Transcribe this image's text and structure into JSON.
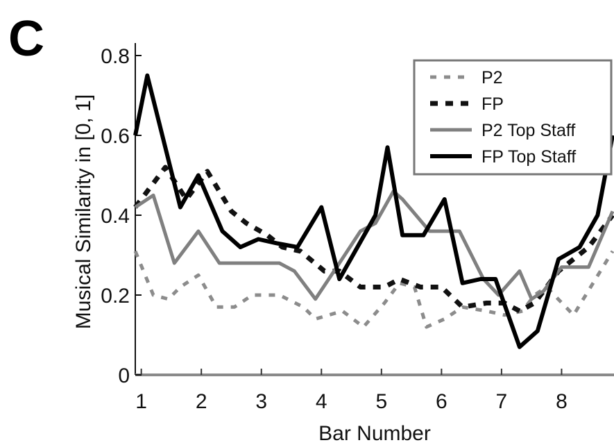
{
  "panel_label": "C",
  "chart_data": {
    "type": "line",
    "title": "",
    "xlabel": "Bar Number",
    "ylabel": "Musical Similarity in [0, 1]",
    "xlim": [
      0.9,
      8.85
    ],
    "ylim": [
      0,
      0.8
    ],
    "x_ticks": [
      1,
      2,
      3,
      4,
      5,
      6,
      7,
      8
    ],
    "x_tick_labels": [
      "1",
      "2",
      "3",
      "4",
      "5",
      "6",
      "7",
      "8"
    ],
    "y_ticks": [
      0,
      0.2,
      0.4,
      0.6,
      0.8
    ],
    "y_tick_labels": [
      "0",
      "0.2",
      "0.4",
      "0.6",
      "0.8"
    ],
    "grid": false,
    "legend_position": "top-right",
    "series": [
      {
        "name": "P2",
        "color": "#8c8c8c",
        "style": "dashed",
        "points": [
          [
            0.9,
            0.31
          ],
          [
            1.2,
            0.2
          ],
          [
            1.45,
            0.19
          ],
          [
            1.65,
            0.22
          ],
          [
            1.95,
            0.25
          ],
          [
            2.25,
            0.17
          ],
          [
            2.55,
            0.17
          ],
          [
            2.85,
            0.2
          ],
          [
            3.3,
            0.2
          ],
          [
            3.7,
            0.17
          ],
          [
            3.9,
            0.14
          ],
          [
            4.35,
            0.16
          ],
          [
            4.7,
            0.12
          ],
          [
            5.05,
            0.18
          ],
          [
            5.3,
            0.23
          ],
          [
            5.55,
            0.22
          ],
          [
            5.75,
            0.12
          ],
          [
            6.05,
            0.14
          ],
          [
            6.35,
            0.17
          ],
          [
            6.75,
            0.16
          ],
          [
            7.05,
            0.15
          ],
          [
            7.35,
            0.16
          ],
          [
            7.55,
            0.2
          ],
          [
            7.75,
            0.22
          ],
          [
            8.2,
            0.15
          ],
          [
            8.85,
            0.31
          ]
        ]
      },
      {
        "name": "FP",
        "color": "#111111",
        "style": "dashed",
        "points": [
          [
            0.9,
            0.42
          ],
          [
            1.4,
            0.52
          ],
          [
            1.75,
            0.44
          ],
          [
            2.1,
            0.51
          ],
          [
            2.5,
            0.41
          ],
          [
            2.75,
            0.38
          ],
          [
            3.1,
            0.35
          ],
          [
            3.35,
            0.32
          ],
          [
            3.65,
            0.31
          ],
          [
            4.05,
            0.26
          ],
          [
            4.3,
            0.26
          ],
          [
            4.65,
            0.22
          ],
          [
            5.05,
            0.22
          ],
          [
            5.3,
            0.24
          ],
          [
            5.65,
            0.22
          ],
          [
            6,
            0.22
          ],
          [
            6.35,
            0.17
          ],
          [
            6.75,
            0.18
          ],
          [
            7.05,
            0.18
          ],
          [
            7.3,
            0.16
          ],
          [
            7.55,
            0.18
          ],
          [
            7.95,
            0.26
          ],
          [
            8.45,
            0.32
          ],
          [
            8.85,
            0.4
          ]
        ]
      },
      {
        "name": "P2 Top Staff",
        "color": "#808080",
        "style": "solid",
        "points": [
          [
            0.9,
            0.42
          ],
          [
            1.2,
            0.45
          ],
          [
            1.55,
            0.28
          ],
          [
            1.95,
            0.36
          ],
          [
            2.3,
            0.28
          ],
          [
            2.75,
            0.28
          ],
          [
            3.3,
            0.28
          ],
          [
            3.55,
            0.26
          ],
          [
            3.9,
            0.19
          ],
          [
            4.3,
            0.28
          ],
          [
            4.65,
            0.36
          ],
          [
            4.9,
            0.38
          ],
          [
            5.2,
            0.46
          ],
          [
            5.35,
            0.44
          ],
          [
            5.8,
            0.36
          ],
          [
            6.3,
            0.36
          ],
          [
            6.7,
            0.24
          ],
          [
            6.95,
            0.2
          ],
          [
            7.3,
            0.26
          ],
          [
            7.5,
            0.19
          ],
          [
            7.7,
            0.21
          ],
          [
            8,
            0.27
          ],
          [
            8.45,
            0.27
          ],
          [
            8.85,
            0.41
          ]
        ]
      },
      {
        "name": "FP Top Staff",
        "color": "#000000",
        "style": "solid",
        "points": [
          [
            0.9,
            0.6
          ],
          [
            1.1,
            0.75
          ],
          [
            1.65,
            0.42
          ],
          [
            1.95,
            0.5
          ],
          [
            2.35,
            0.36
          ],
          [
            2.65,
            0.32
          ],
          [
            2.95,
            0.34
          ],
          [
            3.25,
            0.33
          ],
          [
            3.6,
            0.32
          ],
          [
            4,
            0.42
          ],
          [
            4.3,
            0.24
          ],
          [
            4.9,
            0.4
          ],
          [
            5.1,
            0.57
          ],
          [
            5.35,
            0.35
          ],
          [
            5.7,
            0.35
          ],
          [
            6.05,
            0.44
          ],
          [
            6.35,
            0.23
          ],
          [
            6.65,
            0.24
          ],
          [
            6.9,
            0.24
          ],
          [
            7.3,
            0.07
          ],
          [
            7.6,
            0.11
          ],
          [
            7.95,
            0.29
          ],
          [
            8.3,
            0.32
          ],
          [
            8.6,
            0.4
          ],
          [
            8.85,
            0.6
          ]
        ]
      }
    ]
  }
}
